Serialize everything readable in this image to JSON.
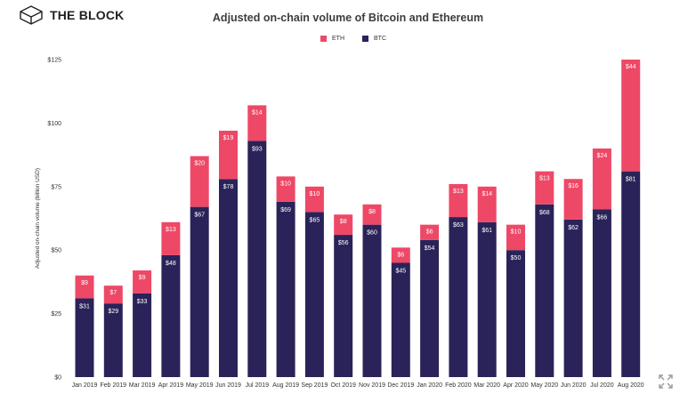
{
  "brand": {
    "name": "THE BLOCK",
    "logo_icon": "cube-logo-icon"
  },
  "colors": {
    "btc": "#2a2359",
    "eth": "#ee4867",
    "text": "#333333",
    "axis": "#444444"
  },
  "chart_data": {
    "type": "bar",
    "stacked": true,
    "title": "Adjusted on-chain volume of Bitcoin and Ethereum",
    "ylabel": "Adjusted on-chain volume (billion USD)",
    "xlabel": "",
    "ylim": [
      0,
      125
    ],
    "yticks": [
      "$0",
      "$25",
      "$50",
      "$75",
      "$100",
      "$125"
    ],
    "grid": false,
    "legend_position": "top-center",
    "legend": [
      "ETH",
      "BTC"
    ],
    "categories": [
      "Jan 2019",
      "Feb 2019",
      "Mar 2019",
      "Apr 2019",
      "May 2019",
      "Jun 2019",
      "Jul 2019",
      "Aug 2019",
      "Sep 2019",
      "Oct 2019",
      "Nov 2019",
      "Dec 2019",
      "Jan 2020",
      "Feb 2020",
      "Mar 2020",
      "Apr 2020",
      "May 2020",
      "Jun 2020",
      "Jul 2020",
      "Aug 2020"
    ],
    "series": [
      {
        "name": "BTC",
        "values": [
          31,
          29,
          33,
          48,
          67,
          78,
          93,
          69,
          65,
          56,
          60,
          45,
          54,
          63,
          61,
          50,
          68,
          62,
          66,
          81
        ],
        "labels": [
          "$31",
          "$29",
          "$33",
          "$48",
          "$67",
          "$78",
          "$93",
          "$69",
          "$65",
          "$56",
          "$60",
          "$45",
          "$54",
          "$63",
          "$61",
          "$50",
          "$68",
          "$62",
          "$66",
          "$81"
        ]
      },
      {
        "name": "ETH",
        "values": [
          9,
          7,
          9,
          13,
          20,
          19,
          14,
          10,
          10,
          8,
          8,
          6,
          6,
          13,
          14,
          10,
          13,
          16,
          24,
          44
        ],
        "labels": [
          "$9",
          "$7",
          "$9",
          "$13",
          "$20",
          "$19",
          "$14",
          "$10",
          "$10",
          "$8",
          "$8",
          "$6",
          "$6",
          "$13",
          "$14",
          "$10",
          "$13",
          "$16",
          "$24",
          "$44"
        ]
      }
    ]
  },
  "ui": {
    "expand_icon": "expand-icon"
  }
}
